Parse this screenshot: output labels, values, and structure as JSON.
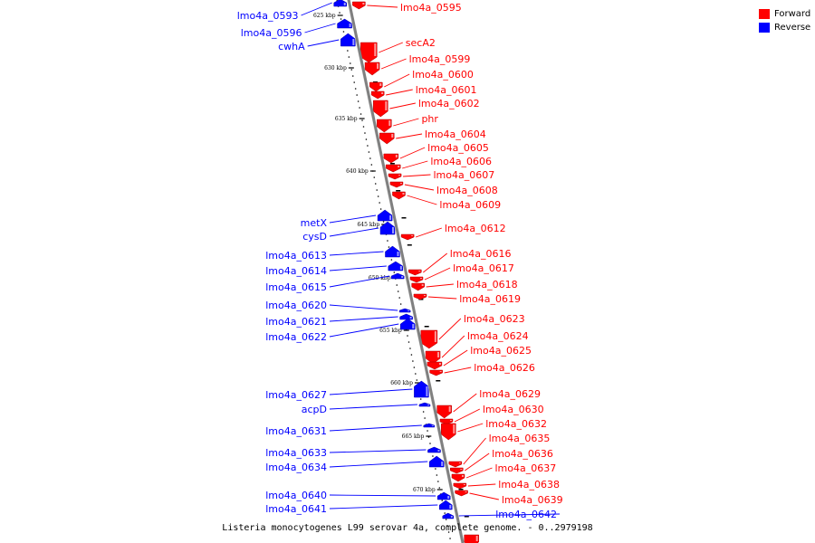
{
  "caption": "Listeria monocytogenes L99 serovar 4a, complete genome. - 0..2979198",
  "legend": [
    {
      "label": "Forward",
      "color": "#ff0000"
    },
    {
      "label": "Reverse",
      "color": "#0000ff"
    }
  ],
  "colors": {
    "forward": "#ff0000",
    "reverse": "#0000ff",
    "backbone": "#808080"
  },
  "ticks": [
    "625 kbp",
    "630 kbp",
    "635 kbp",
    "640 kbp",
    "645 kbp",
    "650 kbp",
    "655 kbp",
    "660 kbp",
    "665 kbp",
    "670 kbp"
  ],
  "forward_genes": [
    "lmo4a_0595",
    "secA2",
    "lmo4a_0599",
    "lmo4a_0600",
    "lmo4a_0601",
    "lmo4a_0602",
    "phr",
    "lmo4a_0604",
    "lmo4a_0605",
    "lmo4a_0606",
    "lmo4a_0607",
    "lmo4a_0608",
    "lmo4a_0609",
    "lmo4a_0612",
    "lmo4a_0616",
    "lmo4a_0617",
    "lmo4a_0618",
    "lmo4a_0619",
    "lmo4a_0623",
    "lmo4a_0624",
    "lmo4a_0625",
    "lmo4a_0626",
    "lmo4a_0629",
    "lmo4a_0630",
    "lmo4a_0632",
    "lmo4a_0635",
    "lmo4a_0636",
    "lmo4a_0637",
    "lmo4a_0638",
    "lmo4a_0639"
  ],
  "reverse_genes": [
    "lmo4a_0593",
    "lmo4a_0596",
    "cwhA",
    "metX",
    "cysD",
    "lmo4a_0613",
    "lmo4a_0614",
    "lmo4a_0615",
    "lmo4a_0620",
    "lmo4a_0621",
    "lmo4a_0622",
    "lmo4a_0627",
    "acpD",
    "lmo4a_0631",
    "lmo4a_0633",
    "lmo4a_0634",
    "lmo4a_0640",
    "lmo4a_0641",
    "lmo4a_0642"
  ]
}
